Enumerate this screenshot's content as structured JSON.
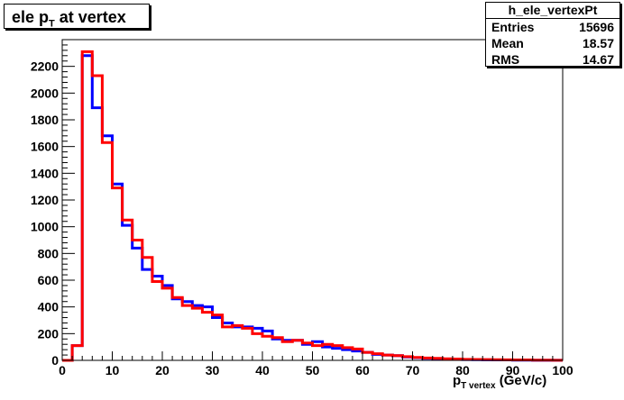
{
  "chart_data": {
    "type": "histogram",
    "title": "ele p_T at vertex",
    "title_main": "ele p",
    "title_sub": "T",
    "title_rest": " at vertex",
    "xlabel": "p_T vertex (GeV/c)",
    "xlabel_main": "p",
    "xlabel_sub": "T vertex",
    "xlabel_rest": "  (GeV/c)",
    "xlim": [
      0,
      100
    ],
    "ylim": [
      0,
      2400
    ],
    "xticks": [
      0,
      10,
      20,
      30,
      40,
      50,
      60,
      70,
      80,
      90,
      100
    ],
    "yticks": [
      0,
      200,
      400,
      600,
      800,
      1000,
      1200,
      1400,
      1600,
      1800,
      2000,
      2200
    ],
    "bin_edges": [
      0,
      2,
      4,
      6,
      8,
      10,
      12,
      14,
      16,
      18,
      20,
      22,
      24,
      26,
      28,
      30,
      32,
      34,
      36,
      38,
      40,
      42,
      44,
      46,
      48,
      50,
      52,
      54,
      56,
      58,
      60,
      62,
      64,
      66,
      68,
      70,
      72,
      74,
      76,
      78,
      80,
      82,
      84,
      86,
      88,
      90,
      92,
      94,
      96,
      98,
      100
    ],
    "series": [
      {
        "color": "#0000ff",
        "values": [
          0,
          110,
          2280,
          1890,
          1680,
          1320,
          1010,
          840,
          680,
          630,
          560,
          460,
          440,
          410,
          400,
          320,
          280,
          250,
          250,
          240,
          220,
          160,
          150,
          150,
          120,
          140,
          100,
          90,
          80,
          70,
          60,
          45,
          40,
          35,
          25,
          20,
          15,
          12,
          10,
          8,
          6,
          5,
          4,
          3,
          3,
          2,
          2,
          1,
          1,
          1
        ]
      },
      {
        "color": "#ff0000",
        "values": [
          0,
          110,
          2310,
          2130,
          1630,
          1290,
          1050,
          900,
          770,
          590,
          540,
          470,
          410,
          390,
          360,
          340,
          250,
          260,
          240,
          200,
          180,
          170,
          140,
          150,
          130,
          110,
          120,
          110,
          95,
          85,
          60,
          50,
          40,
          35,
          28,
          22,
          18,
          15,
          12,
          10,
          8,
          7,
          6,
          5,
          4,
          3,
          3,
          2,
          2,
          1
        ]
      }
    ]
  },
  "stats": {
    "name": "h_ele_vertexPt",
    "entries_label": "Entries",
    "entries": "15696",
    "mean_label": "Mean",
    "mean": "18.57",
    "rms_label": "RMS",
    "rms": "14.67"
  }
}
